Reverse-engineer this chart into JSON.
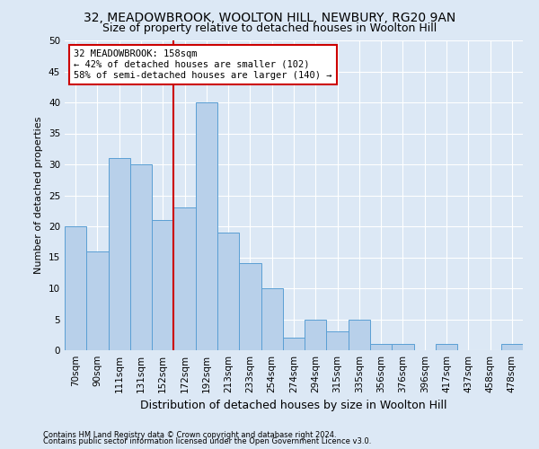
{
  "title1": "32, MEADOWBROOK, WOOLTON HILL, NEWBURY, RG20 9AN",
  "title2": "Size of property relative to detached houses in Woolton Hill",
  "xlabel": "Distribution of detached houses by size in Woolton Hill",
  "ylabel": "Number of detached properties",
  "footnote1": "Contains HM Land Registry data © Crown copyright and database right 2024.",
  "footnote2": "Contains public sector information licensed under the Open Government Licence v3.0.",
  "bar_labels": [
    "70sqm",
    "90sqm",
    "111sqm",
    "131sqm",
    "152sqm",
    "172sqm",
    "192sqm",
    "213sqm",
    "233sqm",
    "254sqm",
    "274sqm",
    "294sqm",
    "315sqm",
    "335sqm",
    "356sqm",
    "376sqm",
    "396sqm",
    "417sqm",
    "437sqm",
    "458sqm",
    "478sqm"
  ],
  "bar_values": [
    20,
    16,
    31,
    30,
    21,
    23,
    40,
    19,
    14,
    10,
    2,
    5,
    3,
    5,
    1,
    1,
    0,
    1,
    0,
    0,
    1
  ],
  "bar_color": "#b8d0ea",
  "bar_edge_color": "#5a9fd4",
  "bg_color": "#dce8f5",
  "fig_bg_color": "#dce8f5",
  "grid_color": "#ffffff",
  "vline_x_index": 4.5,
  "vline_color": "#cc0000",
  "annotation_line1": "32 MEADOWBROOK: 158sqm",
  "annotation_line2": "← 42% of detached houses are smaller (102)",
  "annotation_line3": "58% of semi-detached houses are larger (140) →",
  "annotation_box_color": "#cc0000",
  "ylim": [
    0,
    50
  ],
  "yticks": [
    0,
    5,
    10,
    15,
    20,
    25,
    30,
    35,
    40,
    45,
    50
  ],
  "title1_fontsize": 10,
  "title2_fontsize": 9,
  "xlabel_fontsize": 9,
  "ylabel_fontsize": 8,
  "tick_fontsize": 7.5,
  "annotation_fontsize": 7.5,
  "footnote_fontsize": 6
}
